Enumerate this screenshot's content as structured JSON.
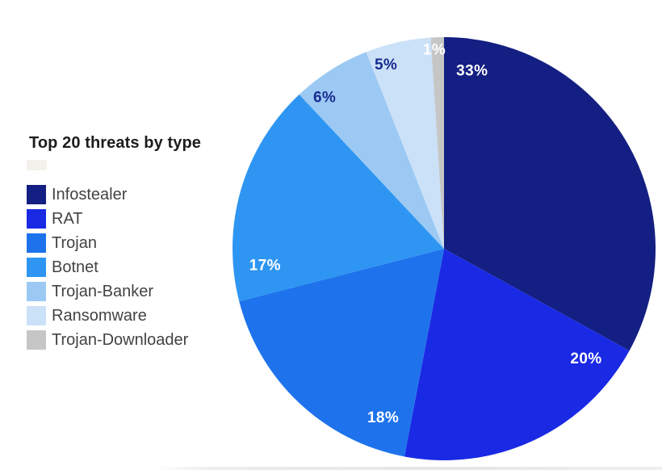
{
  "chart_data": {
    "type": "pie",
    "title": "Top 20 threats by type",
    "legend_position": "left",
    "clockwise": true,
    "start_angle": "12-o-clock",
    "total": 100,
    "slices": [
      {
        "label": "Infostealer",
        "value": 33,
        "pct_label": "33%",
        "color": "#131F82",
        "pct_color": "#FFFFFF"
      },
      {
        "label": "RAT",
        "value": 20,
        "pct_label": "20%",
        "color": "#1A2AE4",
        "pct_color": "#FFFFFF"
      },
      {
        "label": "Trojan",
        "value": 18,
        "pct_label": "18%",
        "color": "#1E73EC",
        "pct_color": "#FFFFFF"
      },
      {
        "label": "Botnet",
        "value": 17,
        "pct_label": "17%",
        "color": "#2E96F2",
        "pct_color": "#FFFFFF"
      },
      {
        "label": "Trojan-Banker",
        "value": 6,
        "pct_label": "6%",
        "color": "#9CC9F3",
        "pct_color": "#182A8F"
      },
      {
        "label": "Ransomware",
        "value": 5,
        "pct_label": "5%",
        "color": "#CBE1F8",
        "pct_color": "#182A8F"
      },
      {
        "label": "Trojan-Downloader",
        "value": 1,
        "pct_label": "1%",
        "color": "#C6C6C6",
        "pct_color": "#FFFFFF"
      }
    ]
  }
}
